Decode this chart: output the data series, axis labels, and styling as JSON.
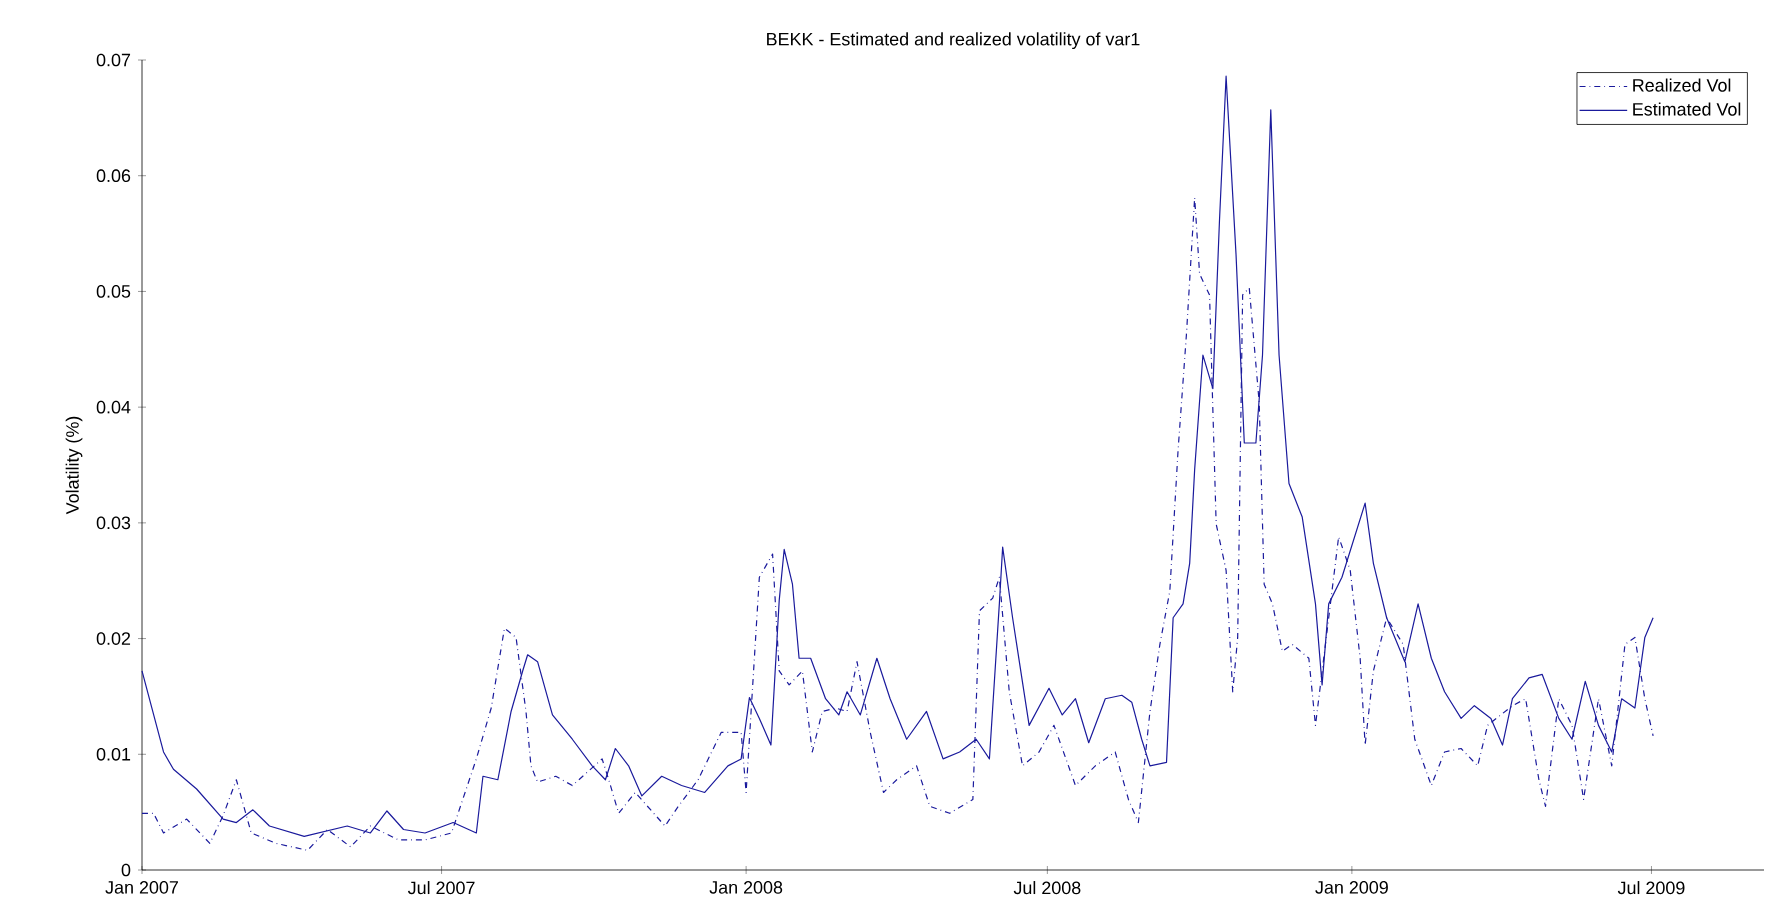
{
  "chart_data": {
    "type": "line",
    "title": "BEKK - Estimated and realized volatility of var1",
    "ylabel": "Volatility (%)",
    "xlim": [
      "2007-01-01",
      "2009-09-07"
    ],
    "ylim": [
      0,
      0.07
    ],
    "xticks": [
      {
        "value": "2007-01-01",
        "label": "Jan 2007"
      },
      {
        "value": "2007-07-01",
        "label": "Jul 2007"
      },
      {
        "value": "2008-01-01",
        "label": "Jan 2008"
      },
      {
        "value": "2008-07-01",
        "label": "Jul 2008"
      },
      {
        "value": "2009-01-01",
        "label": "Jan 2009"
      },
      {
        "value": "2009-07-01",
        "label": "Jul 2009"
      }
    ],
    "yticks": [
      0,
      0.01,
      0.02,
      0.03,
      0.04,
      0.05,
      0.06,
      0.07
    ],
    "grid": false,
    "legend": "top right",
    "marker": "none",
    "series": [
      {
        "name": "Realized Vol",
        "color": "#1a1a9c",
        "line_style": "dashdot",
        "x": [
          "2007-01-01",
          "2007-01-08",
          "2007-01-14",
          "2007-01-28",
          "2007-02-11",
          "2007-02-19",
          "2007-02-27",
          "2007-03-08",
          "2007-03-23",
          "2007-04-11",
          "2007-04-23",
          "2007-05-07",
          "2007-05-19",
          "2007-06-05",
          "2007-06-21",
          "2007-07-07",
          "2007-07-22",
          "2007-07-31",
          "2007-08-08",
          "2007-08-15",
          "2007-08-21",
          "2007-08-24",
          "2007-08-28",
          "2007-09-08",
          "2007-09-18",
          "2007-10-06",
          "2007-10-10",
          "2007-10-16",
          "2007-10-26",
          "2007-11-13",
          "2007-11-21",
          "2007-12-03",
          "2007-12-17",
          "2007-12-29",
          "2008-01-01",
          "2008-01-09",
          "2008-01-17",
          "2008-01-21",
          "2008-01-27",
          "2008-02-04",
          "2008-02-10",
          "2008-02-16",
          "2008-02-24",
          "2008-03-02",
          "2008-03-08",
          "2008-03-16",
          "2008-03-24",
          "2008-04-01",
          "2008-04-13",
          "2008-04-21",
          "2008-05-03",
          "2008-05-17",
          "2008-05-21",
          "2008-05-29",
          "2008-06-02",
          "2008-06-08",
          "2008-06-16",
          "2008-06-26",
          "2008-07-05",
          "2008-07-18",
          "2008-07-30",
          "2008-08-11",
          "2008-08-19",
          "2008-08-25",
          "2008-09-01",
          "2008-09-07",
          "2008-09-13",
          "2008-09-18",
          "2008-09-23",
          "2008-09-28",
          "2008-10-01",
          "2008-10-07",
          "2008-10-11",
          "2008-10-17",
          "2008-10-21",
          "2008-10-24",
          "2008-10-27",
          "2008-10-31",
          "2008-11-06",
          "2008-11-09",
          "2008-11-14",
          "2008-11-20",
          "2008-11-26",
          "2008-12-06",
          "2008-12-10",
          "2008-12-18",
          "2008-12-24",
          "2008-12-31",
          "2009-01-06",
          "2009-01-09",
          "2009-01-14",
          "2009-01-22",
          "2009-02-01",
          "2009-02-08",
          "2009-02-18",
          "2009-02-26",
          "2009-03-08",
          "2009-03-18",
          "2009-03-24",
          "2009-04-08",
          "2009-04-16",
          "2009-04-24",
          "2009-04-28",
          "2009-05-06",
          "2009-05-14",
          "2009-05-21",
          "2009-05-30",
          "2009-06-07",
          "2009-06-15",
          "2009-06-21",
          "2009-06-27",
          "2009-07-02"
        ],
        "values": [
          0.0049,
          0.0049,
          0.0032,
          0.0044,
          0.0023,
          0.0047,
          0.0078,
          0.0032,
          0.0023,
          0.0017,
          0.0035,
          0.002,
          0.0038,
          0.0026,
          0.0026,
          0.0032,
          0.0096,
          0.014,
          0.0209,
          0.0201,
          0.0137,
          0.009,
          0.0076,
          0.0081,
          0.0073,
          0.0096,
          0.0078,
          0.0049,
          0.0067,
          0.0038,
          0.0055,
          0.0078,
          0.0119,
          0.0119,
          0.0067,
          0.0253,
          0.0273,
          0.0172,
          0.016,
          0.0172,
          0.0102,
          0.0137,
          0.014,
          0.0137,
          0.018,
          0.0119,
          0.0067,
          0.0078,
          0.009,
          0.0055,
          0.0049,
          0.0061,
          0.0224,
          0.0235,
          0.0253,
          0.0154,
          0.009,
          0.0102,
          0.0125,
          0.0073,
          0.009,
          0.0102,
          0.0061,
          0.0041,
          0.0137,
          0.0195,
          0.0241,
          0.0363,
          0.0462,
          0.0581,
          0.0515,
          0.0497,
          0.0299,
          0.0259,
          0.0154,
          0.0201,
          0.0497,
          0.0503,
          0.0404,
          0.0247,
          0.023,
          0.0189,
          0.0195,
          0.0183,
          0.0125,
          0.0218,
          0.0288,
          0.0259,
          0.0183,
          0.0108,
          0.0172,
          0.0218,
          0.0195,
          0.0113,
          0.0073,
          0.0102,
          0.0105,
          0.009,
          0.0125,
          0.0142,
          0.0148,
          0.0078,
          0.0055,
          0.0148,
          0.0125,
          0.0061,
          0.0148,
          0.009,
          0.0195,
          0.0201,
          0.0148,
          0.0116
        ]
      },
      {
        "name": "Estimated Vol",
        "color": "#1a1a9c",
        "line_style": "solid",
        "x": [
          "2007-01-01",
          "2007-01-14",
          "2007-01-20",
          "2007-02-03",
          "2007-02-19",
          "2007-02-27",
          "2007-03-09",
          "2007-03-19",
          "2007-04-09",
          "2007-05-05",
          "2007-05-19",
          "2007-05-29",
          "2007-06-08",
          "2007-06-21",
          "2007-07-08",
          "2007-07-22",
          "2007-07-26",
          "2007-08-04",
          "2007-08-12",
          "2007-08-19",
          "2007-08-22",
          "2007-08-28",
          "2007-09-06",
          "2007-09-18",
          "2007-09-30",
          "2007-10-08",
          "2007-10-14",
          "2007-10-22",
          "2007-10-30",
          "2007-11-11",
          "2007-11-23",
          "2007-12-07",
          "2007-12-21",
          "2007-12-29",
          "2008-01-03",
          "2008-01-09",
          "2008-01-16",
          "2008-01-21",
          "2008-01-24",
          "2008-01-29",
          "2008-02-02",
          "2008-02-09",
          "2008-02-18",
          "2008-02-26",
          "2008-03-02",
          "2008-03-10",
          "2008-03-20",
          "2008-03-28",
          "2008-04-07",
          "2008-04-19",
          "2008-04-29",
          "2008-05-09",
          "2008-05-19",
          "2008-05-27",
          "2008-06-02",
          "2008-06-04",
          "2008-06-10",
          "2008-06-20",
          "2008-07-02",
          "2008-07-10",
          "2008-07-18",
          "2008-07-26",
          "2008-08-05",
          "2008-08-15",
          "2008-08-21",
          "2008-08-27",
          "2008-09-01",
          "2008-09-11",
          "2008-09-15",
          "2008-09-21",
          "2008-09-25",
          "2008-09-28",
          "2008-10-03",
          "2008-10-09",
          "2008-10-13",
          "2008-10-17",
          "2008-10-23",
          "2008-10-28",
          "2008-11-04",
          "2008-11-08",
          "2008-11-13",
          "2008-11-18",
          "2008-11-24",
          "2008-12-02",
          "2008-12-10",
          "2008-12-14",
          "2008-12-18",
          "2008-12-26",
          "2009-01-09",
          "2009-01-14",
          "2009-01-22",
          "2009-02-02",
          "2009-02-10",
          "2009-02-18",
          "2009-02-26",
          "2009-03-08",
          "2009-03-16",
          "2009-03-26",
          "2009-04-02",
          "2009-04-08",
          "2009-04-18",
          "2009-04-26",
          "2009-05-06",
          "2009-05-14",
          "2009-05-22",
          "2009-05-30",
          "2009-06-07",
          "2009-06-13",
          "2009-06-21",
          "2009-06-27",
          "2009-07-02"
        ],
        "values": [
          0.0172,
          0.0102,
          0.0087,
          0.007,
          0.0044,
          0.0041,
          0.0052,
          0.0038,
          0.0029,
          0.0038,
          0.0032,
          0.0051,
          0.0035,
          0.0032,
          0.0041,
          0.0032,
          0.0081,
          0.0078,
          0.0137,
          0.0172,
          0.0186,
          0.018,
          0.0134,
          0.0113,
          0.009,
          0.0078,
          0.0105,
          0.009,
          0.0064,
          0.0081,
          0.0073,
          0.0067,
          0.009,
          0.0096,
          0.0149,
          0.0131,
          0.0108,
          0.0233,
          0.0277,
          0.0247,
          0.0183,
          0.0183,
          0.0148,
          0.0134,
          0.0154,
          0.0134,
          0.0183,
          0.0148,
          0.0113,
          0.0137,
          0.0096,
          0.0102,
          0.0113,
          0.0096,
          0.023,
          0.0279,
          0.0218,
          0.0125,
          0.0157,
          0.0134,
          0.0148,
          0.011,
          0.0148,
          0.0151,
          0.0145,
          0.0113,
          0.009,
          0.0093,
          0.0218,
          0.023,
          0.0265,
          0.0346,
          0.0445,
          0.0416,
          0.0561,
          0.0686,
          0.0532,
          0.0369,
          0.0369,
          0.0445,
          0.0657,
          0.0445,
          0.0334,
          0.0305,
          0.023,
          0.016,
          0.023,
          0.0253,
          0.0317,
          0.0265,
          0.0218,
          0.018,
          0.023,
          0.0183,
          0.0154,
          0.0131,
          0.0142,
          0.0131,
          0.0108,
          0.0148,
          0.0166,
          0.0169,
          0.0131,
          0.0113,
          0.0163,
          0.0125,
          0.0102,
          0.0148,
          0.014,
          0.0201,
          0.0218
        ]
      }
    ]
  }
}
